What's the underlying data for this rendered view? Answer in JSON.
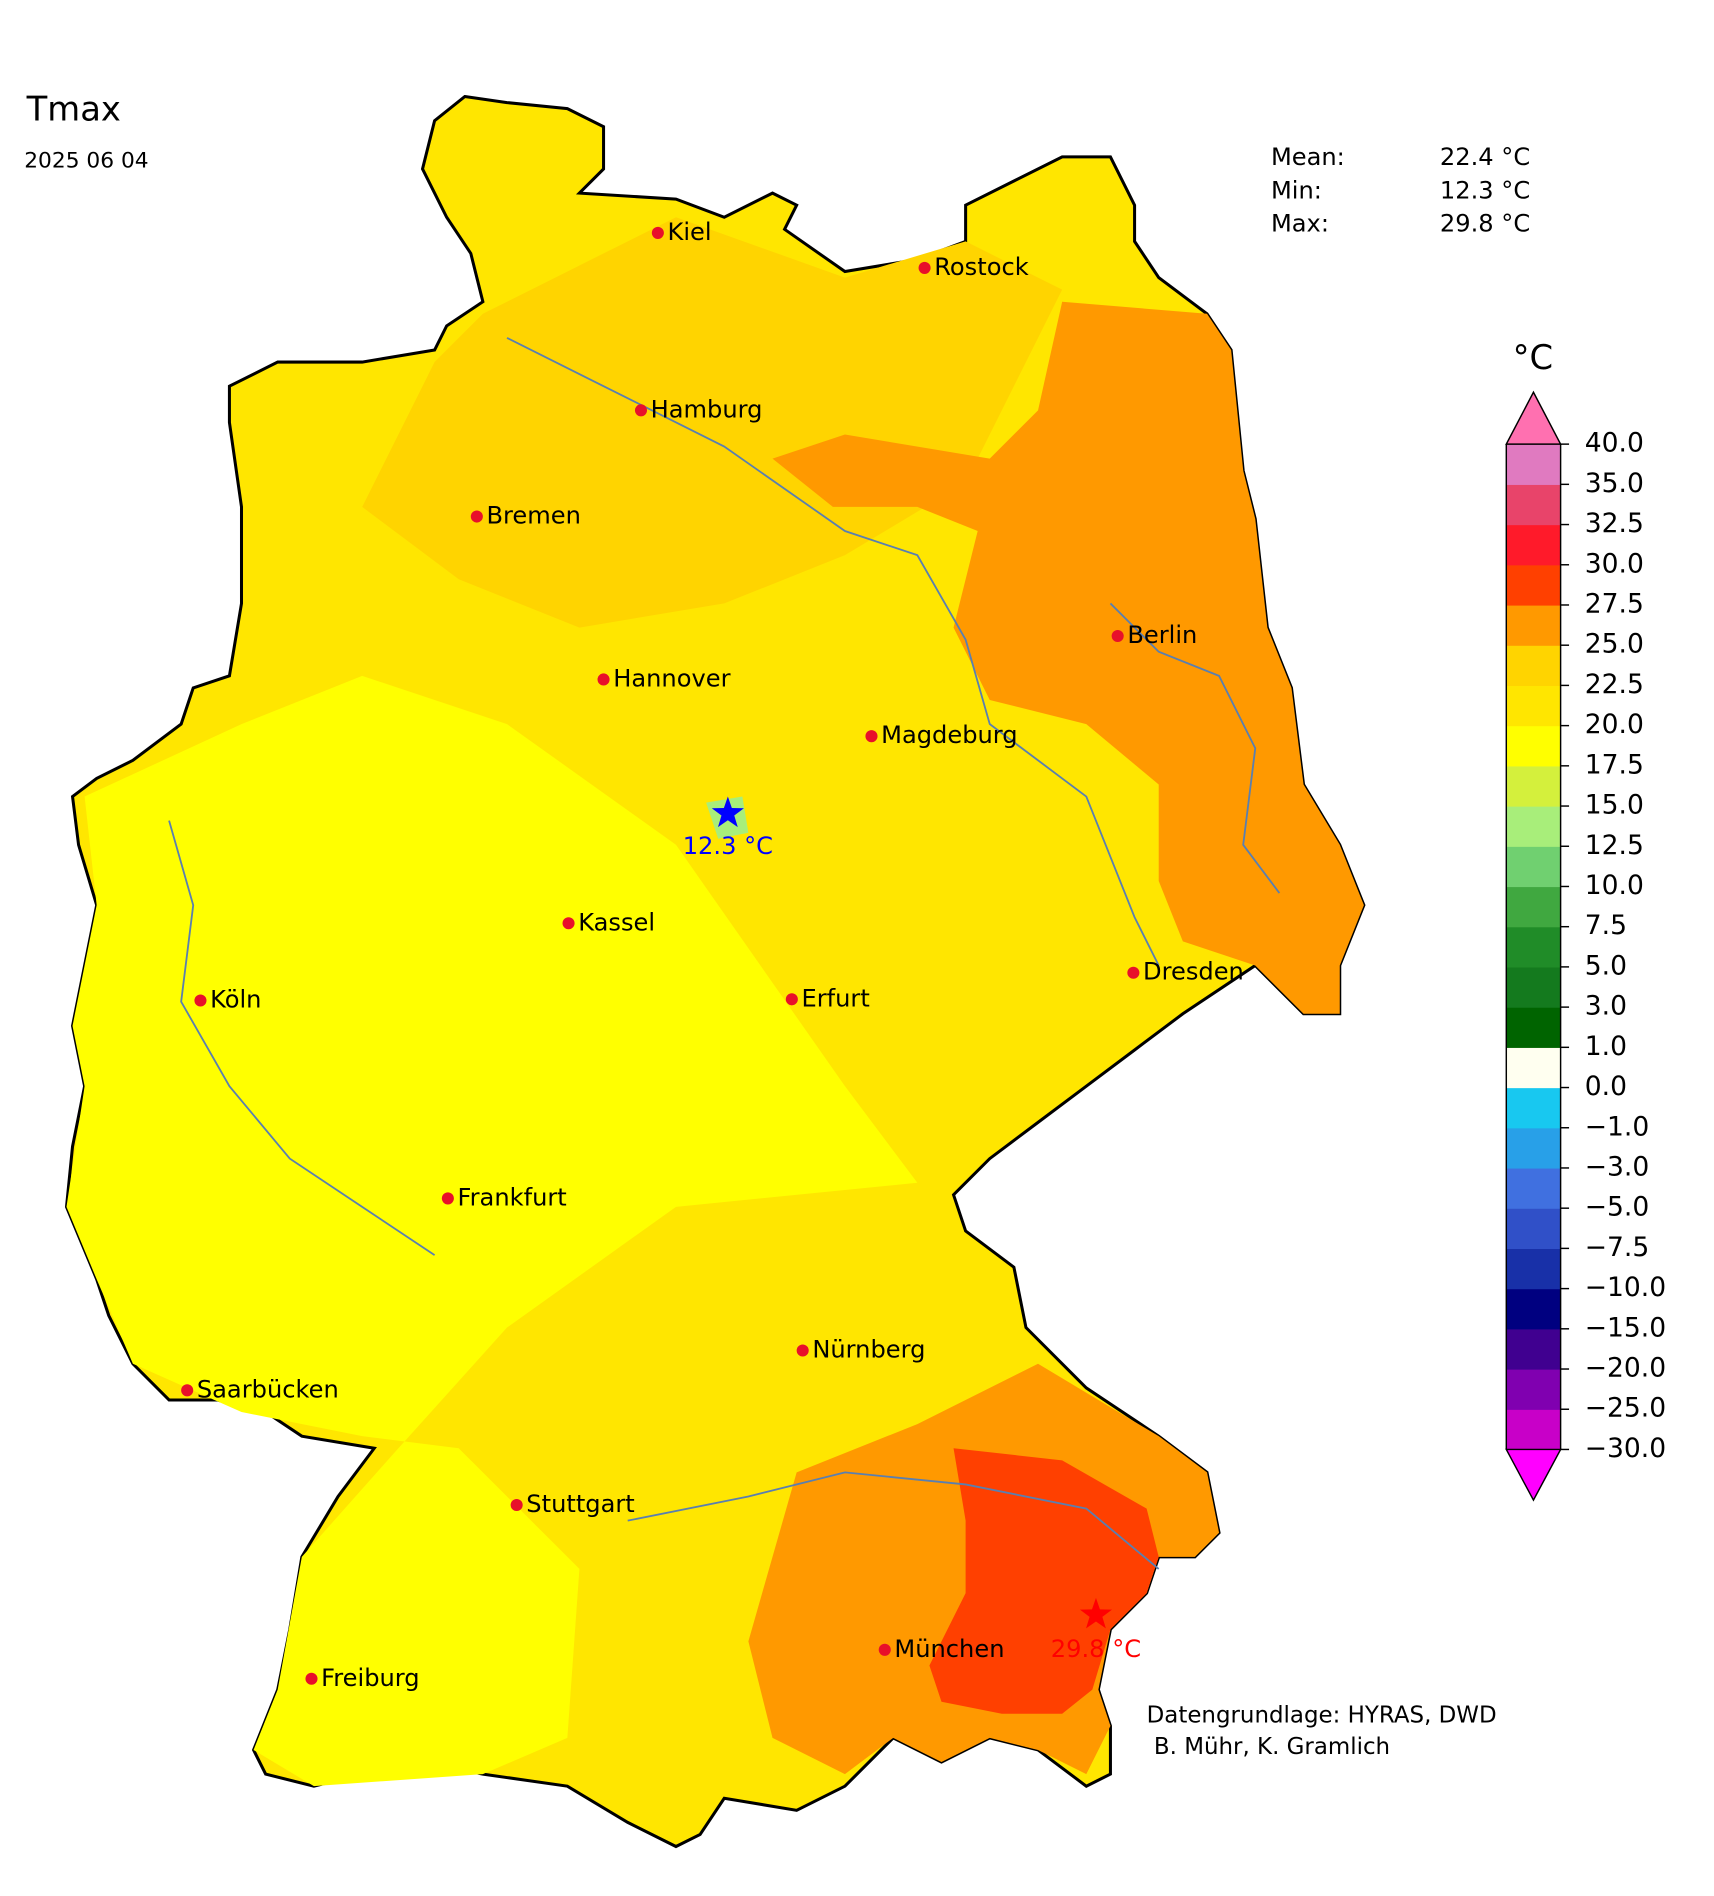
{
  "header": {
    "title": "Tmax",
    "date": "2025 06 04"
  },
  "stats": [
    {
      "label": "Mean:",
      "value": "22.4 °C"
    },
    {
      "label": "Min:",
      "value": "12.3 °C"
    },
    {
      "label": "Max:",
      "value": "29.8 °C"
    }
  ],
  "cities": [
    "Kiel",
    "Rostock",
    "Hamburg",
    "Bremen",
    "Berlin",
    "Hannover",
    "Magdeburg",
    "Kassel",
    "Dresden",
    "Köln",
    "Erfurt",
    "Frankfurt",
    "Nürnberg",
    "Saarbücken",
    "Stuttgart",
    "München",
    "Freiburg"
  ],
  "extremes": {
    "min_label": "12.3 °C",
    "min_color": "#0000ff",
    "max_label": "29.8 °C",
    "max_color": "#ff0000"
  },
  "colorbar": {
    "unit": "°C",
    "ticks": [
      {
        "value": -30,
        "label": "−30.0"
      },
      {
        "value": -25,
        "label": "−25.0"
      },
      {
        "value": -20,
        "label": "−20.0"
      },
      {
        "value": -15,
        "label": "−15.0"
      },
      {
        "value": -10,
        "label": "−10.0"
      },
      {
        "value": -7.5,
        "label": "−7.5"
      },
      {
        "value": -5,
        "label": "−5.0"
      },
      {
        "value": -3,
        "label": "−3.0"
      },
      {
        "value": -1,
        "label": "−1.0"
      },
      {
        "value": 0,
        "label": "0.0"
      },
      {
        "value": 1,
        "label": "1.0"
      },
      {
        "value": 3,
        "label": "3.0"
      },
      {
        "value": 5,
        "label": "5.0"
      },
      {
        "value": 7.5,
        "label": "7.5"
      },
      {
        "value": 10,
        "label": "10.0"
      },
      {
        "value": 12.5,
        "label": "12.5"
      },
      {
        "value": 15,
        "label": "15.0"
      },
      {
        "value": 17.5,
        "label": "17.5"
      },
      {
        "value": 20,
        "label": "20.0"
      },
      {
        "value": 22.5,
        "label": "22.5"
      },
      {
        "value": 25,
        "label": "25.0"
      },
      {
        "value": 27.5,
        "label": "27.5"
      },
      {
        "value": 30,
        "label": "30.0"
      },
      {
        "value": 32.5,
        "label": "32.5"
      },
      {
        "value": 35,
        "label": "35.0"
      },
      {
        "value": 40,
        "label": "40.0"
      }
    ],
    "colors": [
      "#c800c8",
      "#8000b0",
      "#400090",
      "#000080",
      "#1830a8",
      "#3050c8",
      "#4070e0",
      "#28a0e8",
      "#18c8f0",
      "#fffff0",
      "#006400",
      "#147a1e",
      "#208c28",
      "#40a840",
      "#70d070",
      "#a8ee7a",
      "#d4f03c",
      "#ffff00",
      "#ffe600",
      "#ffd400",
      "#ff9900",
      "#ff4000",
      "#ff1a2a",
      "#e8446a",
      "#e07ac0"
    ],
    "extend_min_color": "#ff00ff",
    "extend_max_color": "#ff70b0"
  },
  "credits": [
    "Datengrundlage: HYRAS, DWD",
    " B. Mühr, K. Gramlich"
  ]
}
